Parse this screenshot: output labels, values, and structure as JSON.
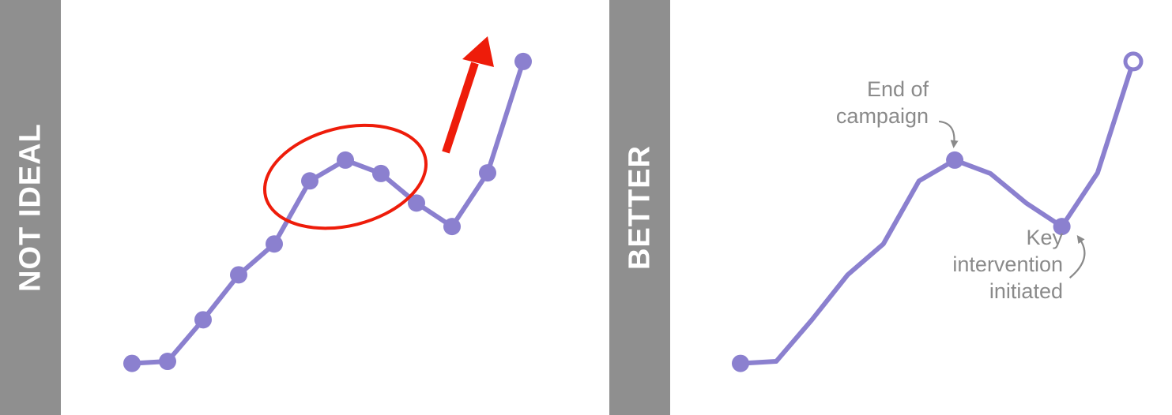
{
  "panels": {
    "left": {
      "label": "NOT IDEAL"
    },
    "right": {
      "label": "BETTER"
    }
  },
  "colors": {
    "line": "#8b80cf",
    "highlight": "#ee1c0a",
    "annotation": "#8a8a8a",
    "panel_bar": "#8f8f8f"
  },
  "chart_data": [
    {
      "type": "line",
      "panel": "NOT IDEAL",
      "x": [
        1,
        2,
        3,
        4,
        5,
        6,
        7,
        8,
        9,
        10,
        11,
        12
      ],
      "values": [
        1.2,
        1.5,
        7.7,
        14.4,
        19.0,
        28.4,
        31.5,
        29.5,
        25.1,
        21.6,
        29.6,
        46.2
      ],
      "ylim": [
        0,
        50
      ],
      "markers": "all",
      "grid": false,
      "annotations": [
        {
          "kind": "ellipse",
          "around_points": [
            6,
            7,
            8
          ]
        },
        {
          "kind": "arrow",
          "direction": "up"
        }
      ]
    },
    {
      "type": "line",
      "panel": "BETTER",
      "x": [
        1,
        2,
        3,
        4,
        5,
        6,
        7,
        8,
        9,
        10,
        11,
        12
      ],
      "values": [
        1.2,
        1.5,
        7.7,
        14.4,
        19.0,
        28.4,
        31.5,
        29.5,
        25.1,
        21.6,
        29.6,
        46.2
      ],
      "ylim": [
        0,
        50
      ],
      "markers": "highlighted",
      "grid": false,
      "annotations": [
        {
          "point": 7,
          "lines": [
            "End of",
            "campaign"
          ]
        },
        {
          "point": 10,
          "lines": [
            "Key",
            "intervention",
            "initiated"
          ]
        }
      ]
    }
  ]
}
